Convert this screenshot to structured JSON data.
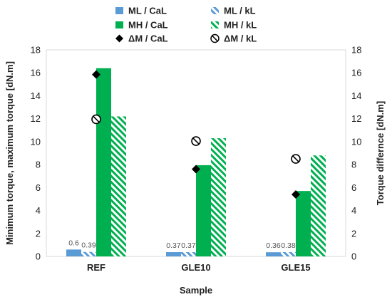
{
  "chart_data": {
    "type": "bar",
    "categories": [
      "REF",
      "GLE10",
      "GLE15"
    ],
    "xlabel": "Sample",
    "ylabel": "Minimum torque, maximum torque [dN.m]",
    "ylabel_right": "Torque differnce [dN.m]",
    "ylim": [
      0,
      18
    ],
    "ylim_right": [
      0,
      18
    ],
    "yticks": [
      0,
      2,
      4,
      6,
      8,
      10,
      12,
      14,
      16,
      18
    ],
    "grid": false,
    "legend_position": "top",
    "series": [
      {
        "name": "ML / CaL",
        "kind": "bar",
        "style": "solid",
        "color": "#5b9bd5",
        "values": [
          0.6,
          0.37,
          0.36
        ],
        "labels": [
          "0.6",
          "0.37",
          "0.36"
        ]
      },
      {
        "name": "ML / kL",
        "kind": "bar",
        "style": "hatched",
        "color": "#5b9bd5",
        "values": [
          0.39,
          0.37,
          0.38
        ],
        "labels": [
          "0.39",
          "0.37",
          "0.38"
        ]
      },
      {
        "name": "MH / CaL",
        "kind": "bar",
        "style": "solid",
        "color": "#00b050",
        "values": [
          16.4,
          7.95,
          5.7
        ]
      },
      {
        "name": "MH / kL",
        "kind": "bar",
        "style": "hatched",
        "color": "#00b050",
        "values": [
          12.2,
          10.3,
          8.8
        ]
      },
      {
        "name": "ΔM / CaL",
        "kind": "marker",
        "marker": "diamond",
        "axis": "right",
        "color": "#000000",
        "values": [
          15.85,
          7.6,
          5.4
        ]
      },
      {
        "name": "ΔM / kL",
        "kind": "marker",
        "marker": "circle-slash",
        "axis": "right",
        "color": "#000000",
        "values": [
          11.95,
          10.05,
          8.5
        ]
      }
    ]
  }
}
